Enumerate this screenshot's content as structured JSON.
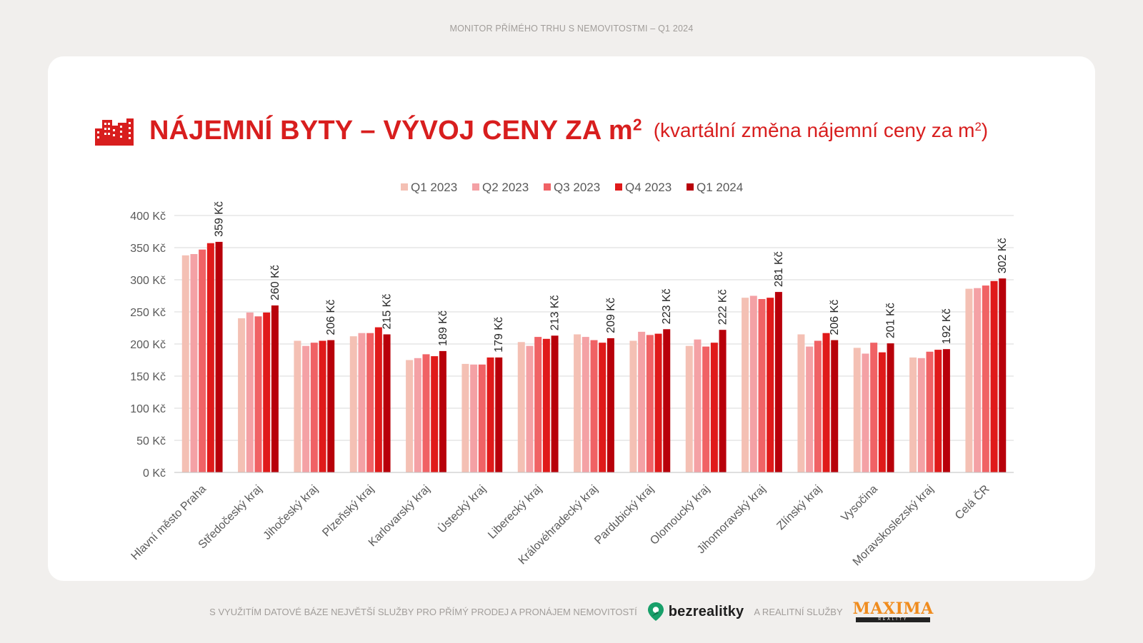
{
  "header": {
    "text": "MONITOR PŘÍMÉHO TRHU S NEMOVITOSTMI – Q1 2024"
  },
  "title": {
    "main": "NÁJEMNÍ BYTY – VÝVOJ CENY ZA m",
    "main_sup": "2",
    "sub": "(kvartální změna nájemní ceny za m",
    "sub_sup": "2",
    "sub_close": ")"
  },
  "icons": {
    "title_icon": "buildings-icon",
    "brand_icon": "map-pin-icon"
  },
  "colors": {
    "title": "#d81e1e",
    "series": [
      "#f4c0b4",
      "#f4a1a5",
      "#f06265",
      "#e01a1a",
      "#b8000a"
    ]
  },
  "footer": {
    "text_before": "S VYUŽITÍM DATOVÉ BÁZE NEJVĚTŠÍ SLUŽBY PRO PŘÍMÝ PRODEJ A PRONÁJEM NEMOVITOSTÍ",
    "brand": "bezrealitky",
    "text_after": "A REALITNÍ SLUŽBY",
    "logo_text": "MAXIMA",
    "logo_sub": "REALITY"
  },
  "chart_data": {
    "type": "bar",
    "categories": [
      "Hlavní město Praha",
      "Středočeský kraj",
      "Jihočeský kraj",
      "Plzeňský kraj",
      "Karlovarský kraj",
      "Ústecký kraj",
      "Liberecký kraj",
      "Královéhradecký kraj",
      "Pardubický kraj",
      "Olomoucký kraj",
      "Jihomoravský kraj",
      "Zlínský kraj",
      "Vysočina",
      "Moravskoslezský kraj",
      "Celá ČR"
    ],
    "series": [
      {
        "name": "Q1 2023",
        "values": [
          338,
          240,
          205,
          212,
          175,
          169,
          203,
          215,
          205,
          197,
          272,
          215,
          194,
          179,
          286
        ]
      },
      {
        "name": "Q2 2023",
        "values": [
          340,
          249,
          197,
          217,
          178,
          168,
          197,
          211,
          219,
          207,
          275,
          196,
          185,
          178,
          287
        ]
      },
      {
        "name": "Q3 2023",
        "values": [
          347,
          243,
          202,
          217,
          184,
          168,
          211,
          206,
          214,
          196,
          270,
          205,
          202,
          188,
          291
        ]
      },
      {
        "name": "Q4 2023",
        "values": [
          357,
          249,
          205,
          226,
          181,
          179,
          208,
          202,
          216,
          202,
          272,
          217,
          187,
          191,
          298
        ]
      },
      {
        "name": "Q1 2024",
        "values": [
          359,
          260,
          206,
          215,
          189,
          179,
          213,
          209,
          223,
          222,
          281,
          206,
          201,
          192,
          302
        ]
      }
    ],
    "data_labels": [
      "359 Kč",
      "260 Kč",
      "206 Kč",
      "215 Kč",
      "189 Kč",
      "179 Kč",
      "213 Kč",
      "209 Kč",
      "223 Kč",
      "222 Kč",
      "281 Kč",
      "206 Kč",
      "201 Kč",
      "192 Kč",
      "302 Kč"
    ],
    "y_ticks": [
      0,
      50,
      100,
      150,
      200,
      250,
      300,
      350,
      400
    ],
    "y_tick_labels": [
      "0 Kč",
      "50 Kč",
      "100 Kč",
      "150 Kč",
      "200 Kč",
      "250 Kč",
      "300 Kč",
      "350 Kč",
      "400 Kč"
    ],
    "ylim": [
      0,
      400
    ],
    "grid": true,
    "legend_position": "top-center"
  }
}
